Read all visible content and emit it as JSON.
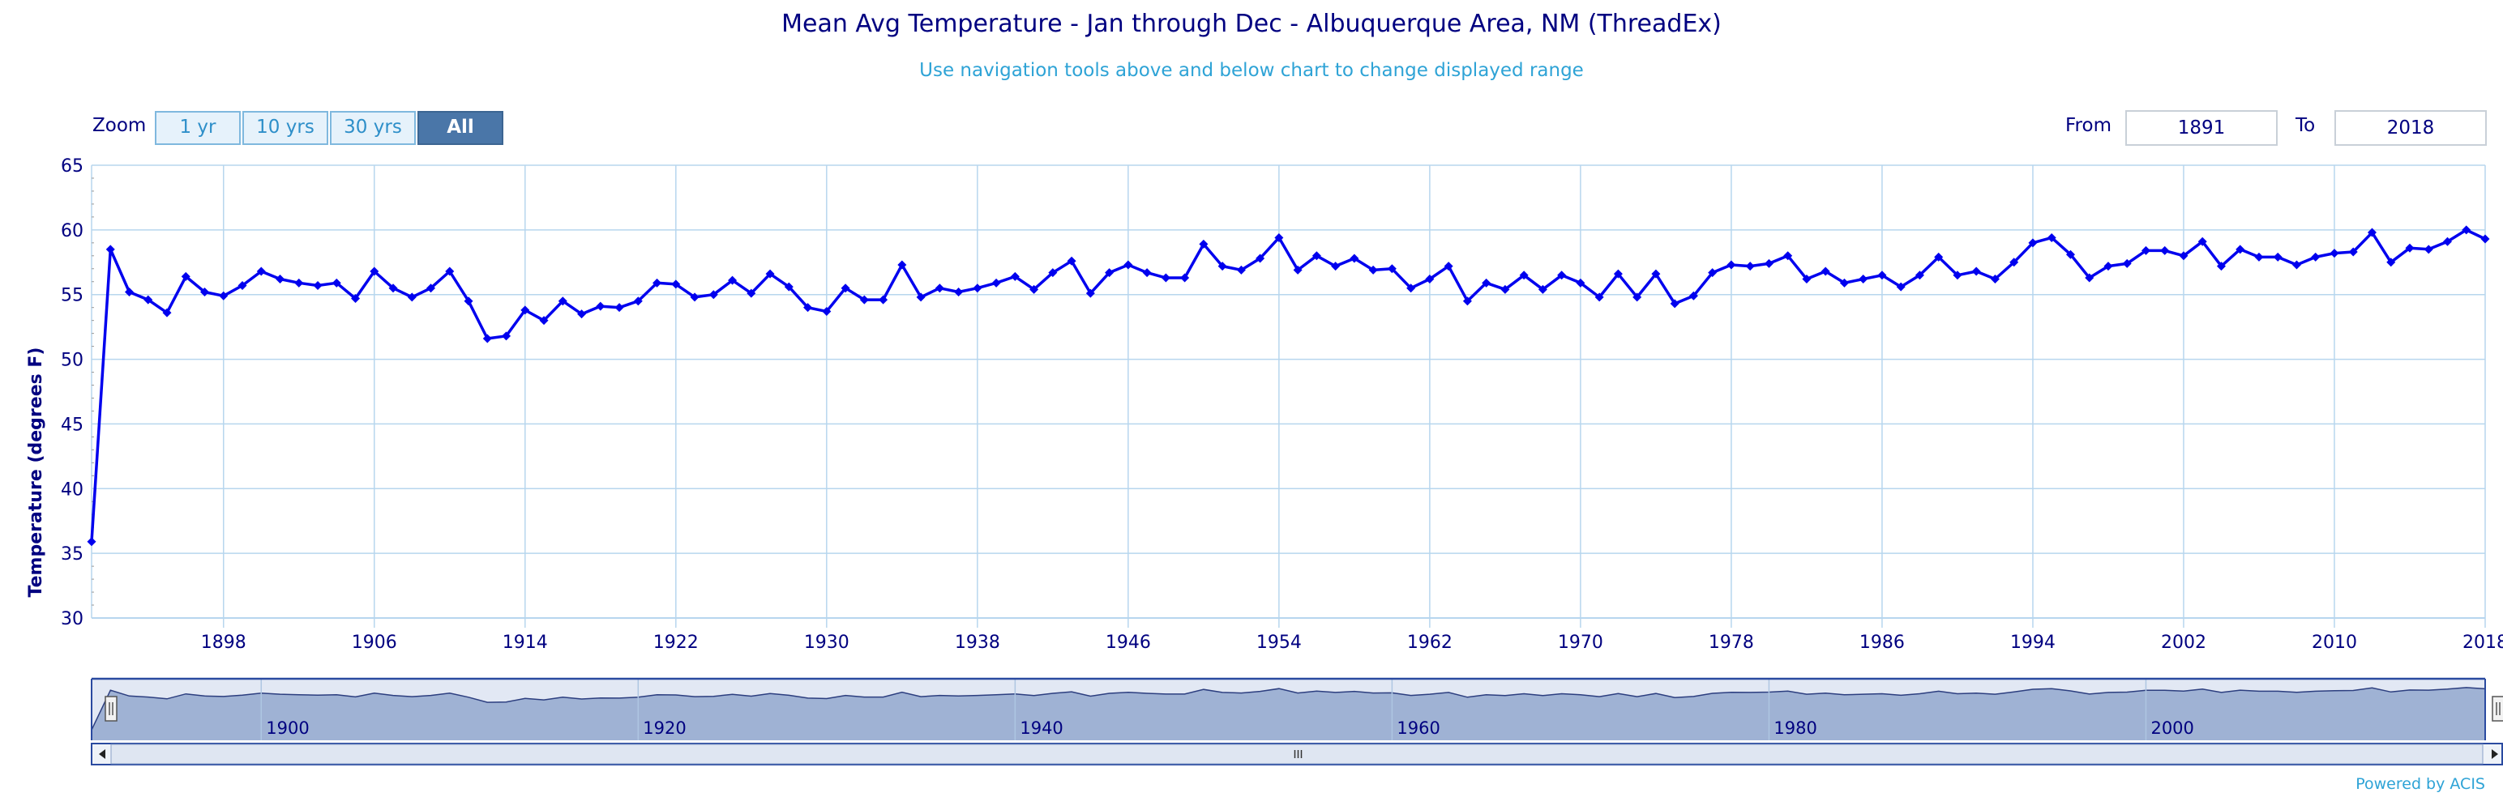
{
  "title": "Mean Avg Temperature - Jan through Dec - Albuquerque Area, NM (ThreadEx)",
  "subtitle": "Use navigation tools above and below chart to change displayed range",
  "zoom": {
    "label": "Zoom",
    "buttons": [
      "1 yr",
      "10 yrs",
      "30 yrs",
      "All"
    ],
    "active": "All"
  },
  "range": {
    "from_label": "From",
    "from_value": "1891",
    "to_label": "To",
    "to_value": "2018"
  },
  "credit": "Powered by ACIS",
  "colors": {
    "series": "#0000ee",
    "grid": "#b7d6ee",
    "axis_text": "#000080",
    "navigator_fill": "#9fb2d4",
    "navigator_line": "#2c3e7f"
  },
  "chart_data": {
    "type": "line",
    "title": "Mean Avg Temperature - Jan through Dec - Albuquerque Area, NM (ThreadEx)",
    "ylabel": "Temperature (degrees F)",
    "xlabel": "",
    "ylim": [
      30,
      65
    ],
    "yticks": [
      30,
      35,
      40,
      45,
      50,
      55,
      60,
      65
    ],
    "xlim": [
      1891,
      2018
    ],
    "xticks": [
      1898,
      1906,
      1914,
      1922,
      1930,
      1938,
      1946,
      1954,
      1962,
      1970,
      1978,
      1986,
      1994,
      2002,
      2010,
      2018
    ],
    "grid": true,
    "series": [
      {
        "x": [
          1891,
          1892,
          1893,
          1894,
          1895,
          1896,
          1897,
          1898,
          1899,
          1900,
          1901,
          1902,
          1903,
          1904,
          1905,
          1906,
          1907,
          1908,
          1909,
          1910,
          1911,
          1912,
          1913,
          1914,
          1915,
          1916,
          1917,
          1918,
          1919,
          1920,
          1921,
          1922,
          1923,
          1924,
          1925,
          1926,
          1927,
          1928,
          1929,
          1930,
          1931,
          1932,
          1933,
          1934,
          1935,
          1936,
          1937,
          1938,
          1939,
          1940,
          1941,
          1942,
          1943,
          1944,
          1945,
          1946,
          1947,
          1948,
          1949,
          1950,
          1951,
          1952,
          1953,
          1954,
          1955,
          1956,
          1957,
          1958,
          1959,
          1960,
          1961,
          1962,
          1963,
          1964,
          1965,
          1966,
          1967,
          1968,
          1969,
          1970,
          1971,
          1972,
          1973,
          1974,
          1975,
          1976,
          1977,
          1978,
          1979,
          1980,
          1981,
          1982,
          1983,
          1984,
          1985,
          1986,
          1987,
          1988,
          1989,
          1990,
          1991,
          1992,
          1993,
          1994,
          1995,
          1996,
          1997,
          1998,
          1999,
          2000,
          2001,
          2002,
          2003,
          2004,
          2005,
          2006,
          2007,
          2008,
          2009,
          2010,
          2011,
          2012,
          2013,
          2014,
          2015,
          2016,
          2017,
          2018
        ],
        "values": [
          35.9,
          58.5,
          55.2,
          54.6,
          53.6,
          56.4,
          55.2,
          54.9,
          55.7,
          56.8,
          56.2,
          55.9,
          55.7,
          55.9,
          54.7,
          56.8,
          55.5,
          54.8,
          55.5,
          56.8,
          54.5,
          51.6,
          51.8,
          53.8,
          53.0,
          54.5,
          53.5,
          54.1,
          54.0,
          54.5,
          55.9,
          55.8,
          54.8,
          55.0,
          56.1,
          55.1,
          56.6,
          55.6,
          54.0,
          53.7,
          55.5,
          54.6,
          54.6,
          57.3,
          54.8,
          55.5,
          55.2,
          55.5,
          55.9,
          56.4,
          55.4,
          56.7,
          57.6,
          55.1,
          56.7,
          57.3,
          56.7,
          56.3,
          56.3,
          58.9,
          57.2,
          56.9,
          57.8,
          59.4,
          56.9,
          58.0,
          57.2,
          57.8,
          56.9,
          57.0,
          55.5,
          56.2,
          57.2,
          54.5,
          55.9,
          55.4,
          56.5,
          55.4,
          56.5,
          55.9,
          54.8,
          56.6,
          54.8,
          56.6,
          54.3,
          54.9,
          56.7,
          57.3,
          57.2,
          57.4,
          58.0,
          56.2,
          56.8,
          55.9,
          56.2,
          56.5,
          55.6,
          56.5,
          57.9,
          56.5,
          56.8,
          56.2,
          57.5,
          59.0,
          59.4,
          58.1,
          56.3,
          57.2,
          57.4,
          58.4,
          58.4,
          58.0,
          59.1,
          57.2,
          58.5,
          57.9,
          57.9,
          57.3,
          57.9,
          58.2,
          58.3,
          59.8,
          57.5,
          58.6,
          58.5,
          59.1,
          60.0,
          59.3
        ]
      }
    ],
    "navigator": {
      "xticks": [
        1900,
        1920,
        1940,
        1960,
        1980,
        2000
      ]
    }
  }
}
